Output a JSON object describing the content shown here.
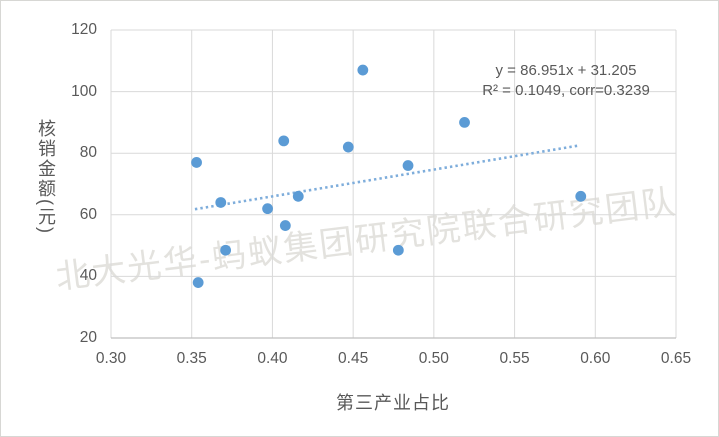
{
  "watermark": {
    "text": "北大光华-蚂蚁集团研究院联合研究团队",
    "color": "#e3e2de"
  },
  "chart_data": {
    "type": "scatter",
    "title": "",
    "xlabel": "第三产业占比",
    "ylabel": "核销金额(元)",
    "xlim": [
      0.3,
      0.65
    ],
    "ylim": [
      20,
      120
    ],
    "xticks": [
      "0.30",
      "0.35",
      "0.40",
      "0.45",
      "0.50",
      "0.55",
      "0.60",
      "0.65"
    ],
    "yticks": [
      20,
      40,
      60,
      80,
      100,
      120
    ],
    "grid": true,
    "legend": "none",
    "points": [
      [
        0.353,
        77
      ],
      [
        0.354,
        38
      ],
      [
        0.368,
        64
      ],
      [
        0.371,
        48.5
      ],
      [
        0.397,
        62
      ],
      [
        0.407,
        84
      ],
      [
        0.408,
        56.5
      ],
      [
        0.416,
        66
      ],
      [
        0.447,
        82
      ],
      [
        0.456,
        107
      ],
      [
        0.478,
        48.5
      ],
      [
        0.484,
        76
      ],
      [
        0.519,
        90
      ],
      [
        0.591,
        66
      ]
    ],
    "trendline": {
      "slope": 86.951,
      "intercept": 31.205,
      "x_start": 0.352,
      "x_end": 0.59,
      "style": "dotted"
    },
    "annotation": {
      "line1": "y = 86.951x + 31.205",
      "line2": "R² = 0.1049, corr=0.3239"
    },
    "colors": {
      "point": "#5b9bd5",
      "trend": "#7eaddb",
      "grid": "#d9d9d9",
      "axis_line": "#bfbfbf",
      "text": "#595959"
    }
  }
}
